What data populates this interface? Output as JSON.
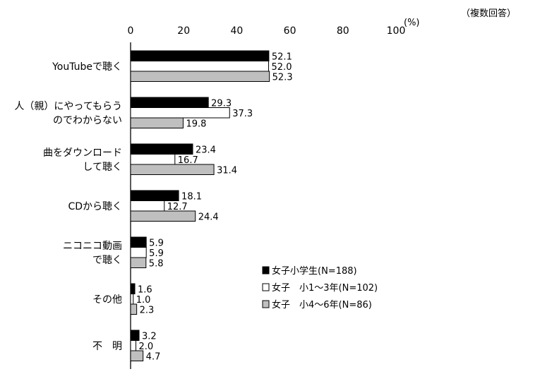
{
  "note": "（複数回答）",
  "chart_data": {
    "type": "bar",
    "orientation": "horizontal",
    "unit": "(%)",
    "xlim": [
      0,
      100
    ],
    "ticks": [
      0,
      20,
      40,
      60,
      80,
      100
    ],
    "grid": false,
    "legend_position": "bottom-right inside plot",
    "categories": [
      [
        "YouTubeで聴く"
      ],
      [
        "人（親）にやってもらう",
        "のでわからない"
      ],
      [
        "曲をダウンロード",
        "して聴く"
      ],
      [
        "CDから聴く"
      ],
      [
        "ニコニコ動画",
        "で聴く"
      ],
      [
        "その他"
      ],
      [
        "不　明"
      ]
    ],
    "series": [
      {
        "name": "女子小学生(N=188)",
        "fill": "#000000",
        "values": [
          52.1,
          29.3,
          23.4,
          18.1,
          5.9,
          1.6,
          3.2
        ],
        "labels": [
          "52.1",
          "29.3",
          "23.4",
          "18.1",
          "5.9",
          "1.6",
          "3.2"
        ]
      },
      {
        "name": "女子　小1～3年(N=102)",
        "fill": "#ffffff",
        "values": [
          52.0,
          37.3,
          16.7,
          12.7,
          5.9,
          1.0,
          2.0
        ],
        "labels": [
          "52.0",
          "37.3",
          "16.7",
          "12.7",
          "5.9",
          "1.0",
          "2.0"
        ]
      },
      {
        "name": "女子　小4～6年(N=86)",
        "fill": "#bfbfbf",
        "values": [
          52.3,
          19.8,
          31.4,
          24.4,
          5.8,
          2.3,
          4.7
        ],
        "labels": [
          "52.3",
          "19.8",
          "31.4",
          "24.4",
          "5.8",
          "2.3",
          "4.7"
        ]
      }
    ]
  }
}
